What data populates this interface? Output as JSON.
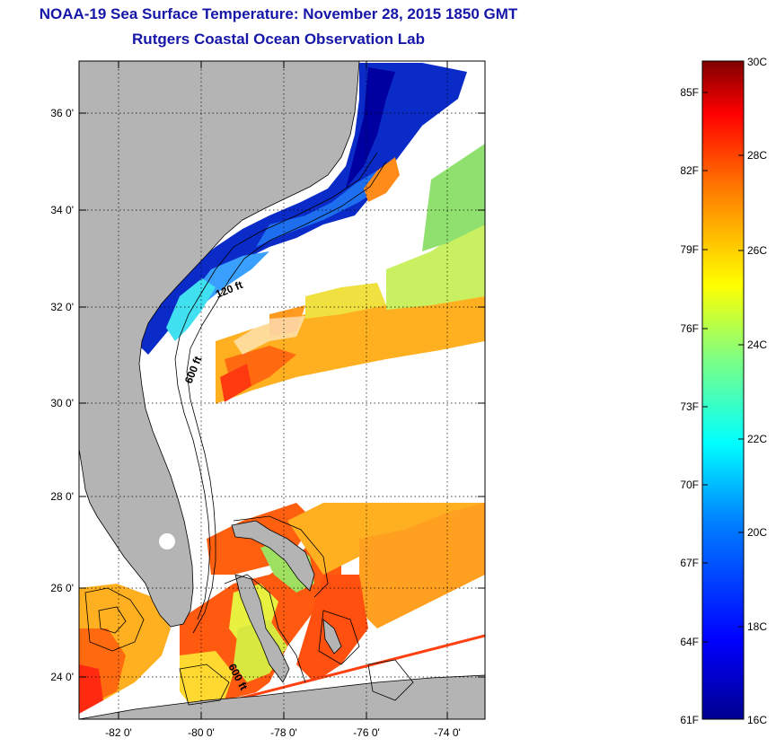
{
  "header": {
    "title": "NOAA-19 Sea Surface Temperature:  November 28, 2015 1850 GMT",
    "subtitle": "Rutgers Coastal Ocean Observation Lab"
  },
  "map": {
    "lat_ticks": [
      "36 0'",
      "34 0'",
      "32 0'",
      "30 0'",
      "28 0'",
      "26 0'",
      "24 0'"
    ],
    "lon_ticks": [
      "-82 0'",
      "-80 0'",
      "-78 0'",
      "-76 0'",
      "-74 0'"
    ],
    "contour_labels": [
      "120 ft",
      "600 ft",
      "600 ft"
    ]
  },
  "colorbar": {
    "f_labels": [
      "85F",
      "82F",
      "79F",
      "76F",
      "73F",
      "70F",
      "67F",
      "64F",
      "61F"
    ],
    "c_labels": [
      "30C",
      "28C",
      "26C",
      "24C",
      "22C",
      "20C",
      "18C",
      "16C"
    ],
    "colors": [
      "#00008f",
      "#0000ff",
      "#0080ff",
      "#00ffff",
      "#80ff80",
      "#ffff00",
      "#ff8000",
      "#ff0000",
      "#800000"
    ]
  },
  "colors": {
    "title": "#1616a8",
    "land": "#b4b4b4"
  }
}
